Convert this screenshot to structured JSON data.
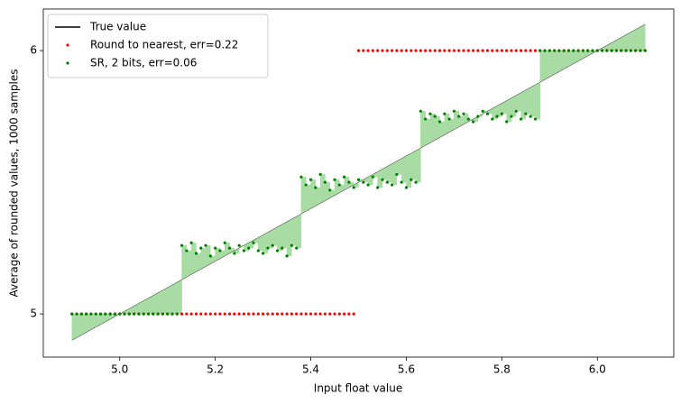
{
  "chart_data": {
    "type": "scatter",
    "xlabel": "Input float value",
    "ylabel": "Average of rounded values, 1000 samples",
    "xlim": [
      4.84,
      6.16
    ],
    "ylim": [
      4.836,
      6.158
    ],
    "xticks": [
      {
        "value": 5,
        "label": "5.0"
      },
      {
        "value": 5.2,
        "label": "5.2"
      },
      {
        "value": 5.4,
        "label": "5.4"
      },
      {
        "value": 5.6,
        "label": "5.6"
      },
      {
        "value": 5.8,
        "label": "5.8"
      },
      {
        "value": 6,
        "label": "6.0"
      }
    ],
    "yticks": [
      5,
      6
    ],
    "legend": "upper left",
    "fill_color": "#a9dca4",
    "x": [
      4.9,
      4.91,
      4.92,
      4.93,
      4.94,
      4.95,
      4.96,
      4.97,
      4.98,
      4.99,
      5,
      5.01,
      5.02,
      5.03,
      5.04,
      5.05,
      5.06,
      5.07,
      5.08,
      5.09,
      5.1,
      5.11,
      5.12,
      5.13,
      5.14,
      5.15,
      5.16,
      5.17,
      5.18,
      5.19,
      5.2,
      5.21,
      5.22,
      5.23,
      5.24,
      5.25,
      5.26,
      5.27,
      5.28,
      5.29,
      5.3,
      5.31,
      5.32,
      5.33,
      5.34,
      5.35,
      5.36,
      5.37,
      5.38,
      5.39,
      5.4,
      5.41,
      5.42,
      5.43,
      5.44,
      5.45,
      5.46,
      5.47,
      5.48,
      5.49,
      5.5,
      5.51,
      5.52,
      5.53,
      5.54,
      5.55,
      5.56,
      5.57,
      5.58,
      5.59,
      5.6,
      5.61,
      5.62,
      5.63,
      5.64,
      5.65,
      5.66,
      5.67,
      5.68,
      5.69,
      5.7,
      5.71,
      5.72,
      5.73,
      5.74,
      5.75,
      5.76,
      5.77,
      5.78,
      5.79,
      5.8,
      5.81,
      5.82,
      5.83,
      5.84,
      5.85,
      5.86,
      5.87,
      5.88,
      5.89,
      5.9,
      5.91,
      5.92,
      5.93,
      5.94,
      5.95,
      5.96,
      5.97,
      5.98,
      5.99,
      6,
      6.01,
      6.02,
      6.03,
      6.04,
      6.05,
      6.06,
      6.07,
      6.08,
      6.09,
      6.1
    ],
    "series": [
      {
        "name": "True value",
        "color": "black",
        "kind": "line",
        "values": [
          4.9,
          4.91,
          4.92,
          4.93,
          4.94,
          4.95,
          4.96,
          4.97,
          4.98,
          4.99,
          5,
          5.01,
          5.02,
          5.03,
          5.04,
          5.05,
          5.06,
          5.07,
          5.08,
          5.09,
          5.1,
          5.11,
          5.12,
          5.13,
          5.14,
          5.15,
          5.16,
          5.17,
          5.18,
          5.19,
          5.2,
          5.21,
          5.22,
          5.23,
          5.24,
          5.25,
          5.26,
          5.27,
          5.28,
          5.29,
          5.3,
          5.31,
          5.32,
          5.33,
          5.34,
          5.35,
          5.36,
          5.37,
          5.38,
          5.39,
          5.4,
          5.41,
          5.42,
          5.43,
          5.44,
          5.45,
          5.46,
          5.47,
          5.48,
          5.49,
          5.5,
          5.51,
          5.52,
          5.53,
          5.54,
          5.55,
          5.56,
          5.57,
          5.58,
          5.59,
          5.6,
          5.61,
          5.62,
          5.63,
          5.64,
          5.65,
          5.66,
          5.67,
          5.68,
          5.69,
          5.7,
          5.71,
          5.72,
          5.73,
          5.74,
          5.75,
          5.76,
          5.77,
          5.78,
          5.79,
          5.8,
          5.81,
          5.82,
          5.83,
          5.84,
          5.85,
          5.86,
          5.87,
          5.88,
          5.89,
          5.9,
          5.91,
          5.92,
          5.93,
          5.94,
          5.95,
          5.96,
          5.97,
          5.98,
          5.99,
          6,
          6.01,
          6.02,
          6.03,
          6.04,
          6.05,
          6.06,
          6.07,
          6.08,
          6.09,
          6.1
        ]
      },
      {
        "name": "Round to nearest, err=0.22",
        "color": "red",
        "kind": "dots",
        "values": [
          5,
          5,
          5,
          5,
          5,
          5,
          5,
          5,
          5,
          5,
          5,
          5,
          5,
          5,
          5,
          5,
          5,
          5,
          5,
          5,
          5,
          5,
          5,
          5,
          5,
          5,
          5,
          5,
          5,
          5,
          5,
          5,
          5,
          5,
          5,
          5,
          5,
          5,
          5,
          5,
          5,
          5,
          5,
          5,
          5,
          5,
          5,
          5,
          5,
          5,
          5,
          5,
          5,
          5,
          5,
          5,
          5,
          5,
          5,
          5,
          6,
          6,
          6,
          6,
          6,
          6,
          6,
          6,
          6,
          6,
          6,
          6,
          6,
          6,
          6,
          6,
          6,
          6,
          6,
          6,
          6,
          6,
          6,
          6,
          6,
          6,
          6,
          6,
          6,
          6,
          6,
          6,
          6,
          6,
          6,
          6,
          6,
          6,
          6,
          6,
          6,
          6,
          6,
          6,
          6,
          6,
          6,
          6,
          6,
          6,
          6,
          6,
          6,
          6,
          6,
          6,
          6,
          6,
          6,
          6,
          6
        ]
      },
      {
        "name": "SR, 2 bits, err=0.06",
        "color": "green",
        "kind": "dots",
        "fill": true,
        "values": [
          5,
          5,
          5,
          5,
          5,
          5,
          5,
          5,
          5,
          5,
          5,
          5,
          5,
          5,
          5,
          5,
          5,
          5,
          5,
          5,
          5,
          5,
          5,
          5.26,
          5.24,
          5.27,
          5.23,
          5.25,
          5.26,
          5.22,
          5.25,
          5.24,
          5.27,
          5.25,
          5.23,
          5.26,
          5.24,
          5.25,
          5.27,
          5.24,
          5.23,
          5.25,
          5.26,
          5.24,
          5.25,
          5.22,
          5.26,
          5.25,
          5.52,
          5.49,
          5.51,
          5.48,
          5.53,
          5.5,
          5.47,
          5.51,
          5.49,
          5.52,
          5.5,
          5.48,
          5.51,
          5.5,
          5.49,
          5.52,
          5.48,
          5.51,
          5.5,
          5.49,
          5.53,
          5.5,
          5.48,
          5.51,
          5.5,
          5.77,
          5.74,
          5.76,
          5.75,
          5.73,
          5.76,
          5.74,
          5.77,
          5.75,
          5.76,
          5.74,
          5.73,
          5.75,
          5.77,
          5.76,
          5.74,
          5.75,
          5.76,
          5.73,
          5.75,
          5.77,
          5.74,
          5.76,
          5.75,
          5.74,
          6,
          6,
          6,
          6,
          6,
          6,
          6,
          6,
          6,
          6,
          6,
          6,
          6,
          6,
          6,
          6,
          6,
          6,
          6,
          6,
          6,
          6,
          6
        ]
      }
    ]
  }
}
